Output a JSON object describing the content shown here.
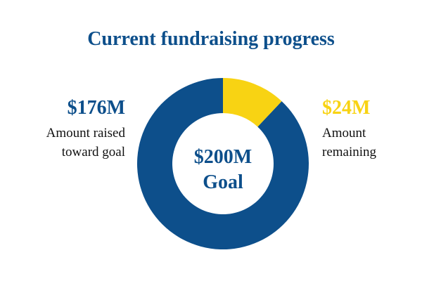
{
  "chart_data": {
    "type": "donut",
    "title": "Current fundraising progress",
    "labels": [
      "Amount raised toward goal",
      "Amount remaining"
    ],
    "values": [
      176,
      24
    ],
    "value_labels": [
      "$176M",
      "$24M"
    ],
    "colors": [
      "#0d4f8b",
      "#f8d313"
    ],
    "center_label": "$200M",
    "center_sublabel": "Goal"
  }
}
